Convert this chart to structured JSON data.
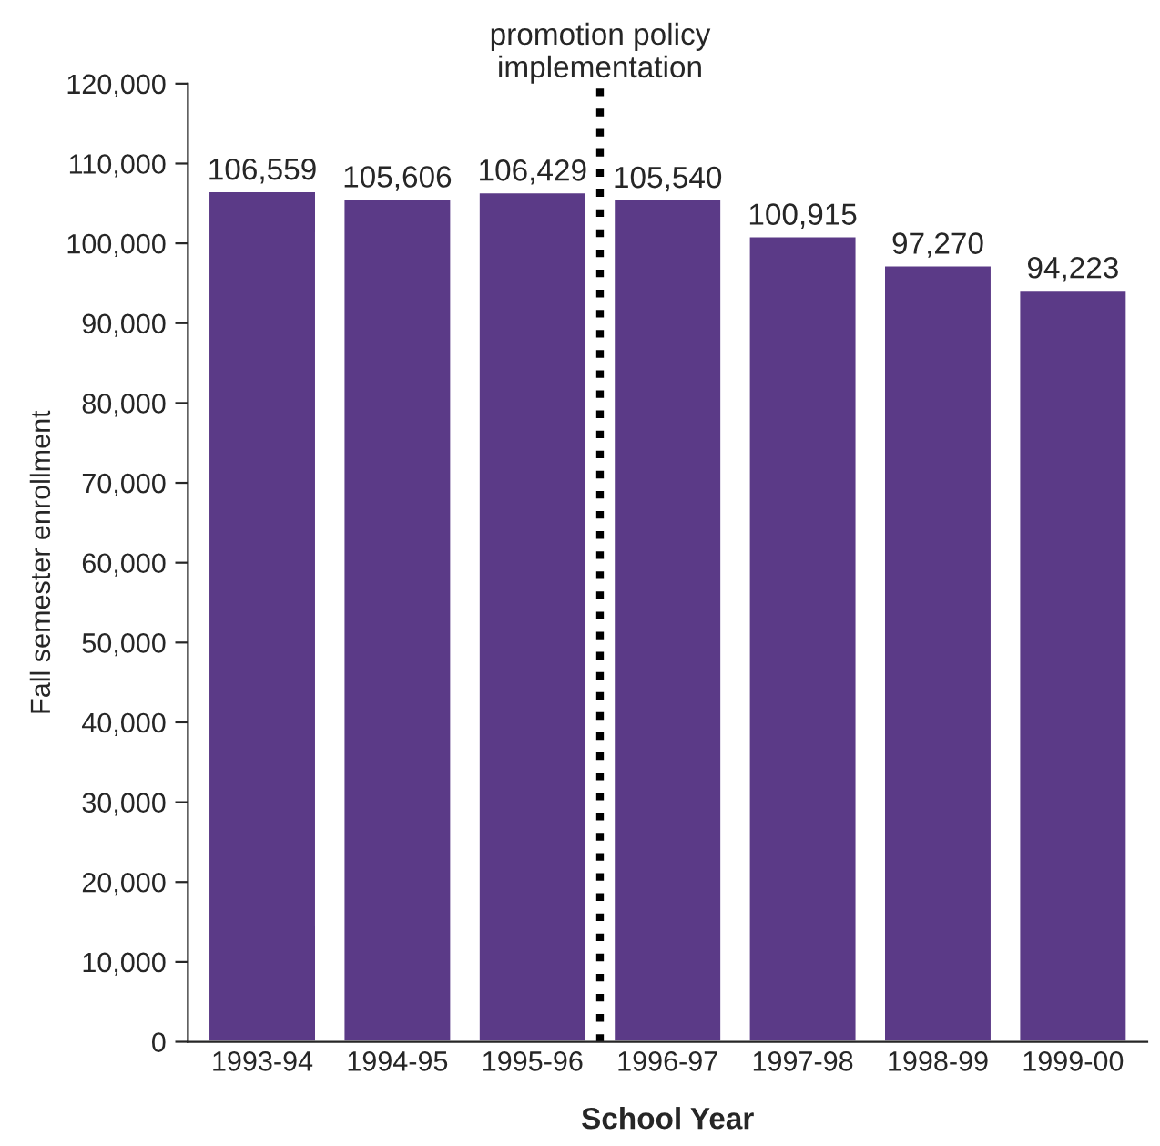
{
  "chart_data": {
    "type": "bar",
    "xlabel": "School Year",
    "ylabel": "Fall semester enrollment",
    "annotations": [
      "promotion policy\nimplementation"
    ],
    "categories": [
      "1993-94",
      "1994-95",
      "1995-96",
      "1996-97",
      "1997-98",
      "1998-99",
      "1999-00"
    ],
    "values": [
      106559,
      105606,
      106429,
      105540,
      100915,
      97270,
      94223
    ],
    "value_labels": [
      "106,559",
      "105,606",
      "106,429",
      "105,540",
      "100,915",
      "97,270",
      "94,223"
    ],
    "color": "#5b3a87",
    "ylim": [
      0,
      120000
    ],
    "yticks": [
      {
        "value": 0,
        "label": "0"
      },
      {
        "value": 10000,
        "label": "10,000"
      },
      {
        "value": 20000,
        "label": "20,000"
      },
      {
        "value": 30000,
        "label": "30,000"
      },
      {
        "value": 40000,
        "label": "40,000"
      },
      {
        "value": 50000,
        "label": "50,000"
      },
      {
        "value": 60000,
        "label": "60,000"
      },
      {
        "value": 70000,
        "label": "70,000"
      },
      {
        "value": 80000,
        "label": "80,000"
      },
      {
        "value": 90000,
        "label": "90,000"
      },
      {
        "value": 100000,
        "label": "100,000"
      },
      {
        "value": 110000,
        "label": "110,000"
      },
      {
        "value": 120000,
        "label": "120,000"
      }
    ],
    "grid": false
  }
}
